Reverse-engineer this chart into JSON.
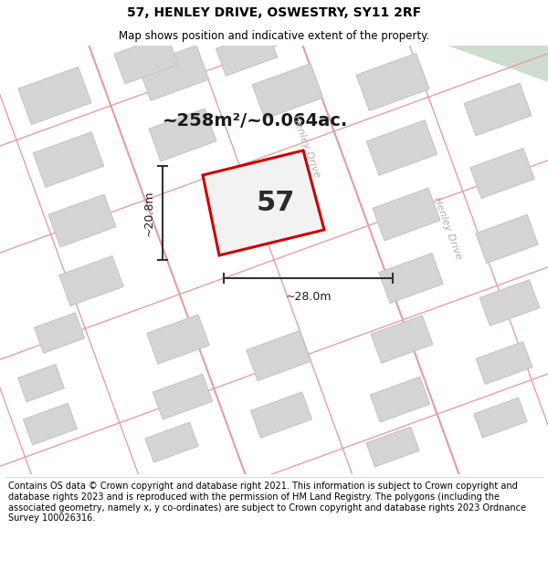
{
  "title": "57, HENLEY DRIVE, OSWESTRY, SY11 2RF",
  "subtitle": "Map shows position and indicative extent of the property.",
  "footer": "Contains OS data © Crown copyright and database right 2021. This information is subject to Crown copyright and database rights 2023 and is reproduced with the permission of HM Land Registry. The polygons (including the associated geometry, namely x, y co-ordinates) are subject to Crown copyright and database rights 2023 Ordnance Survey 100026316.",
  "area_label": "~258m²/~0.064ac.",
  "number_label": "57",
  "dim_width": "~28.0m",
  "dim_height": "~20.8m",
  "plot_color": "#cc0000",
  "building_fill": "#d4d4d4",
  "building_edge": "#c0c0c0",
  "road_color": "#e8a0a0",
  "map_bg": "#f0f0f0",
  "green_color": "#cddece",
  "street_label_color": "#b0b0b0",
  "title_fontsize": 10,
  "subtitle_fontsize": 8.5,
  "footer_fontsize": 7.0,
  "area_fontsize": 14,
  "number_fontsize": 22,
  "dim_fontsize": 9
}
